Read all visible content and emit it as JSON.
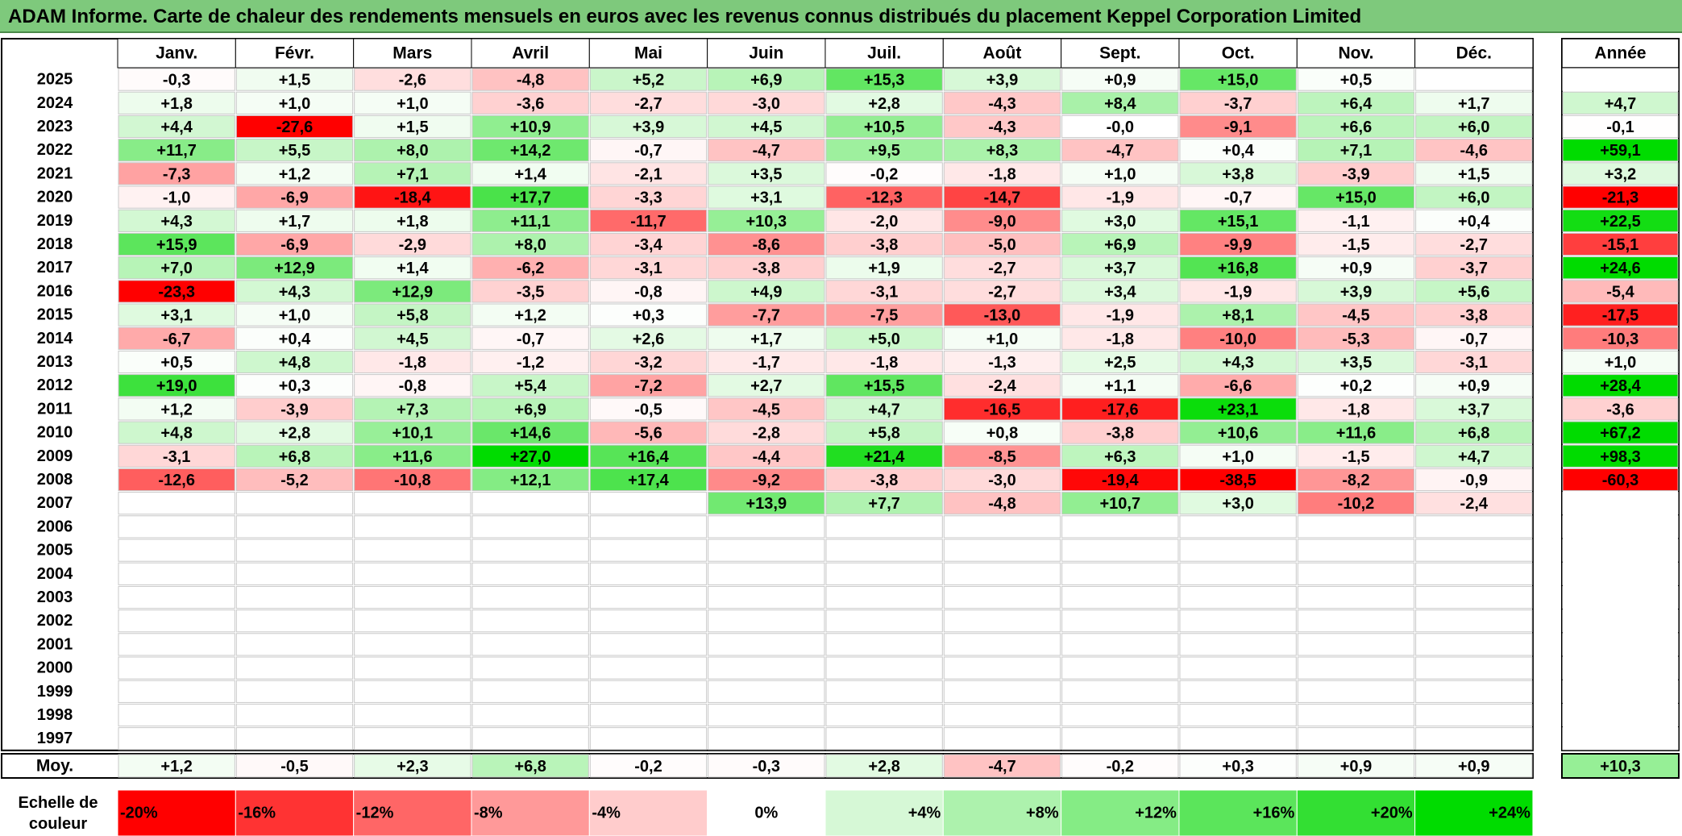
{
  "title": "ADAM Informe. Carte de chaleur des rendements mensuels en euros avec les revenus connus distribués du placement Keppel Corporation Limited",
  "chart_data": {
    "type": "heatmap",
    "months": [
      "Janv.",
      "Févr.",
      "Mars",
      "Avril",
      "Mai",
      "Juin",
      "Juil.",
      "Août",
      "Sept.",
      "Oct.",
      "Nov.",
      "Déc."
    ],
    "year_header": "Année",
    "rows": [
      {
        "year": "2025",
        "values": [
          "-0,3",
          "+1,5",
          "-2,6",
          "-4,8",
          "+5,2",
          "+6,9",
          "+15,3",
          "+3,9",
          "+0,9",
          "+15,0",
          "+0,5",
          ""
        ],
        "annual": ""
      },
      {
        "year": "2024",
        "values": [
          "+1,8",
          "+1,0",
          "+1,0",
          "-3,6",
          "-2,7",
          "-3,0",
          "+2,8",
          "-4,3",
          "+8,4",
          "-3,7",
          "+6,4",
          "+1,7"
        ],
        "annual": "+4,7"
      },
      {
        "year": "2023",
        "values": [
          "+4,4",
          "-27,6",
          "+1,5",
          "+10,9",
          "+3,9",
          "+4,5",
          "+10,5",
          "-4,3",
          "-0,0",
          "-9,1",
          "+6,6",
          "+6,0"
        ],
        "annual": "-0,1"
      },
      {
        "year": "2022",
        "values": [
          "+11,7",
          "+5,5",
          "+8,0",
          "+14,2",
          "-0,7",
          "-4,7",
          "+9,5",
          "+8,3",
          "-4,7",
          "+0,4",
          "+7,1",
          "-4,6"
        ],
        "annual": "+59,1"
      },
      {
        "year": "2021",
        "values": [
          "-7,3",
          "+1,2",
          "+7,1",
          "+1,4",
          "-2,1",
          "+3,5",
          "-0,2",
          "-1,8",
          "+1,0",
          "+3,8",
          "-3,9",
          "+1,5"
        ],
        "annual": "+3,2"
      },
      {
        "year": "2020",
        "values": [
          "-1,0",
          "-6,9",
          "-18,4",
          "+17,7",
          "-3,3",
          "+3,1",
          "-12,3",
          "-14,7",
          "-1,9",
          "-0,7",
          "+15,0",
          "+6,0"
        ],
        "annual": "-21,3"
      },
      {
        "year": "2019",
        "values": [
          "+4,3",
          "+1,7",
          "+1,8",
          "+11,1",
          "-11,7",
          "+10,3",
          "-2,0",
          "-9,0",
          "+3,0",
          "+15,1",
          "-1,1",
          "+0,4"
        ],
        "annual": "+22,5"
      },
      {
        "year": "2018",
        "values": [
          "+15,9",
          "-6,9",
          "-2,9",
          "+8,0",
          "-3,4",
          "-8,6",
          "-3,8",
          "-5,0",
          "+6,9",
          "-9,9",
          "-1,5",
          "-2,7"
        ],
        "annual": "-15,1"
      },
      {
        "year": "2017",
        "values": [
          "+7,0",
          "+12,9",
          "+1,4",
          "-6,2",
          "-3,1",
          "-3,8",
          "+1,9",
          "-2,7",
          "+3,7",
          "+16,8",
          "+0,9",
          "-3,7"
        ],
        "annual": "+24,6"
      },
      {
        "year": "2016",
        "values": [
          "-23,3",
          "+4,3",
          "+12,9",
          "-3,5",
          "-0,8",
          "+4,9",
          "-3,1",
          "-2,7",
          "+3,4",
          "-1,9",
          "+3,9",
          "+5,6"
        ],
        "annual": "-5,4"
      },
      {
        "year": "2015",
        "values": [
          "+3,1",
          "+1,0",
          "+5,8",
          "+1,2",
          "+0,3",
          "-7,7",
          "-7,5",
          "-13,0",
          "-1,9",
          "+8,1",
          "-4,5",
          "-3,8"
        ],
        "annual": "-17,5"
      },
      {
        "year": "2014",
        "values": [
          "-6,7",
          "+0,4",
          "+4,5",
          "-0,7",
          "+2,6",
          "+1,7",
          "+5,0",
          "+1,0",
          "-1,8",
          "-10,0",
          "-5,3",
          "-0,7"
        ],
        "annual": "-10,3"
      },
      {
        "year": "2013",
        "values": [
          "+0,5",
          "+4,8",
          "-1,8",
          "-1,2",
          "-3,2",
          "-1,7",
          "-1,8",
          "-1,3",
          "+2,5",
          "+4,3",
          "+3,5",
          "-3,1"
        ],
        "annual": "+1,0"
      },
      {
        "year": "2012",
        "values": [
          "+19,0",
          "+0,3",
          "-0,8",
          "+5,4",
          "-7,2",
          "+2,7",
          "+15,5",
          "-2,4",
          "+1,1",
          "-6,6",
          "+0,2",
          "+0,9"
        ],
        "annual": "+28,4"
      },
      {
        "year": "2011",
        "values": [
          "+1,2",
          "-3,9",
          "+7,3",
          "+6,9",
          "-0,5",
          "-4,5",
          "+4,7",
          "-16,5",
          "-17,6",
          "+23,1",
          "-1,8",
          "+3,7"
        ],
        "annual": "-3,6"
      },
      {
        "year": "2010",
        "values": [
          "+4,8",
          "+2,8",
          "+10,1",
          "+14,6",
          "-5,6",
          "-2,8",
          "+5,8",
          "+0,8",
          "-3,8",
          "+10,6",
          "+11,6",
          "+6,8"
        ],
        "annual": "+67,2"
      },
      {
        "year": "2009",
        "values": [
          "-3,1",
          "+6,8",
          "+11,6",
          "+27,0",
          "+16,4",
          "-4,4",
          "+21,4",
          "-8,5",
          "+6,3",
          "+1,0",
          "-1,5",
          "+4,7"
        ],
        "annual": "+98,3"
      },
      {
        "year": "2008",
        "values": [
          "-12,6",
          "-5,2",
          "-10,8",
          "+12,1",
          "+17,4",
          "-9,2",
          "-3,8",
          "-3,0",
          "-19,4",
          "-38,5",
          "-8,2",
          "-0,9"
        ],
        "annual": "-60,3"
      },
      {
        "year": "2007",
        "values": [
          "",
          "",
          "",
          "",
          "",
          "+13,9",
          "+7,7",
          "-4,8",
          "+10,7",
          "+3,0",
          "-10,2",
          "-2,4"
        ],
        "annual": ""
      },
      {
        "year": "2006",
        "values": [
          "",
          "",
          "",
          "",
          "",
          "",
          "",
          "",
          "",
          "",
          "",
          ""
        ],
        "annual": ""
      },
      {
        "year": "2005",
        "values": [
          "",
          "",
          "",
          "",
          "",
          "",
          "",
          "",
          "",
          "",
          "",
          ""
        ],
        "annual": ""
      },
      {
        "year": "2004",
        "values": [
          "",
          "",
          "",
          "",
          "",
          "",
          "",
          "",
          "",
          "",
          "",
          ""
        ],
        "annual": ""
      },
      {
        "year": "2003",
        "values": [
          "",
          "",
          "",
          "",
          "",
          "",
          "",
          "",
          "",
          "",
          "",
          ""
        ],
        "annual": ""
      },
      {
        "year": "2002",
        "values": [
          "",
          "",
          "",
          "",
          "",
          "",
          "",
          "",
          "",
          "",
          "",
          ""
        ],
        "annual": ""
      },
      {
        "year": "2001",
        "values": [
          "",
          "",
          "",
          "",
          "",
          "",
          "",
          "",
          "",
          "",
          "",
          ""
        ],
        "annual": ""
      },
      {
        "year": "2000",
        "values": [
          "",
          "",
          "",
          "",
          "",
          "",
          "",
          "",
          "",
          "",
          "",
          ""
        ],
        "annual": ""
      },
      {
        "year": "1999",
        "values": [
          "",
          "",
          "",
          "",
          "",
          "",
          "",
          "",
          "",
          "",
          "",
          ""
        ],
        "annual": ""
      },
      {
        "year": "1998",
        "values": [
          "",
          "",
          "",
          "",
          "",
          "",
          "",
          "",
          "",
          "",
          "",
          ""
        ],
        "annual": ""
      },
      {
        "year": "1997",
        "values": [
          "",
          "",
          "",
          "",
          "",
          "",
          "",
          "",
          "",
          "",
          "",
          ""
        ],
        "annual": ""
      }
    ],
    "average": {
      "label": "Moy.",
      "values": [
        "+1,2",
        "-0,5",
        "+2,3",
        "+6,8",
        "-0,2",
        "-0,3",
        "+2,8",
        "-4,7",
        "-0,2",
        "+0,3",
        "+0,9",
        "+0,9"
      ],
      "annual": "+10,3"
    },
    "color_scale": {
      "label": "Echelle de couleur",
      "stops": [
        {
          "label": "-20%",
          "value": -20,
          "color": "#ff0000"
        },
        {
          "label": "-16%",
          "value": -16,
          "color": "#ff3333"
        },
        {
          "label": "-12%",
          "value": -12,
          "color": "#ff6666"
        },
        {
          "label": "-8%",
          "value": -8,
          "color": "#ff9999"
        },
        {
          "label": "-4%",
          "value": -4,
          "color": "#ffcccc"
        },
        {
          "label": "0%",
          "value": 0,
          "color": "#ffffff"
        },
        {
          "label": "+4%",
          "value": 4,
          "color": "#d6f8d6"
        },
        {
          "label": "+8%",
          "value": 8,
          "color": "#adf2ad"
        },
        {
          "label": "+12%",
          "value": 12,
          "color": "#85ec85"
        },
        {
          "label": "+16%",
          "value": 16,
          "color": "#5be55b"
        },
        {
          "label": "+20%",
          "value": 20,
          "color": "#33df33"
        },
        {
          "label": "+24%",
          "value": 24,
          "color": "#00dc00"
        }
      ]
    }
  }
}
